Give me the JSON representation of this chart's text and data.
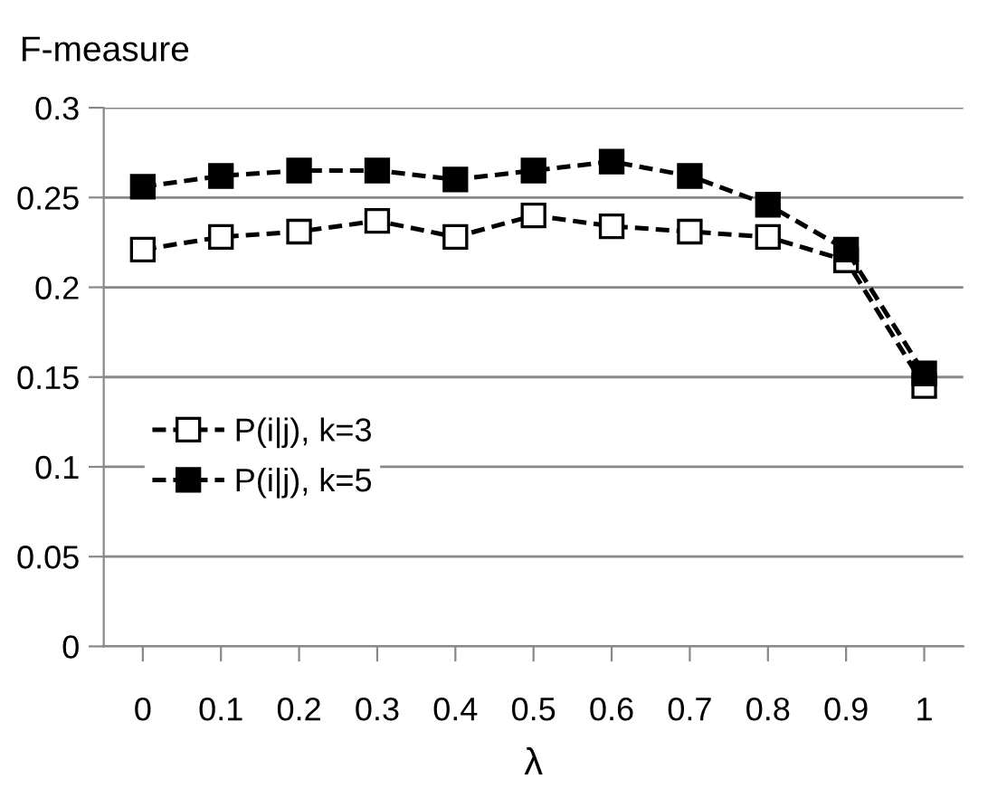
{
  "chart_data": {
    "type": "line",
    "ylabel": "F-measure",
    "xlabel": "λ",
    "categories": [
      "0",
      "0.1",
      "0.2",
      "0.3",
      "0.4",
      "0.5",
      "0.6",
      "0.7",
      "0.8",
      "0.9",
      "1"
    ],
    "series": [
      {
        "name": "P(i|j), k=3",
        "color": "#000000",
        "marker": "square",
        "values": [
          0.221,
          0.228,
          0.231,
          0.237,
          0.228,
          0.24,
          0.234,
          0.231,
          0.228,
          0.215,
          0.145
        ]
      },
      {
        "name": "P(i|j), k=5",
        "color": "#000000",
        "marker": "square",
        "values": [
          0.256,
          0.262,
          0.265,
          0.265,
          0.26,
          0.265,
          0.27,
          0.262,
          0.246,
          0.221,
          0.152
        ]
      }
    ],
    "ylim": [
      0,
      0.3
    ],
    "yticks": [
      0,
      0.05,
      0.1,
      0.15,
      0.2,
      0.25,
      0.3
    ],
    "grid": "y",
    "legend": "center left",
    "line_style": "dashed"
  }
}
